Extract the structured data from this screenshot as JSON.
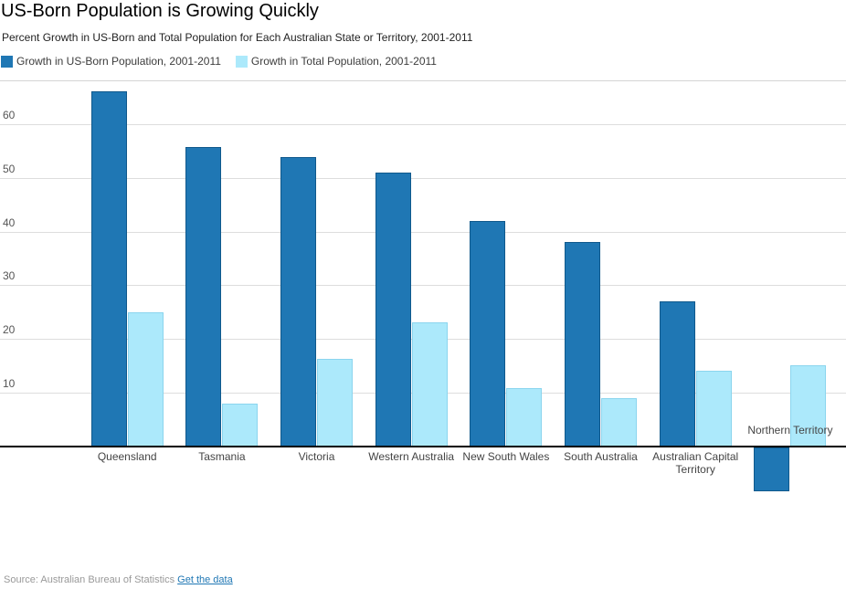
{
  "header": {
    "title": "US-Born Population is Growing Quickly",
    "subtitle": "Percent Growth in US-Born and Total Population for Each Australian State or Territory, 2001-2011"
  },
  "legend": {
    "items": [
      {
        "label": "Growth in US-Born Population, 2001-2011",
        "color": "#1f77b4"
      },
      {
        "label": "Growth in Total Population, 2001-2011",
        "color": "#ace9fb"
      }
    ]
  },
  "chart_data": {
    "type": "bar",
    "title": "US-Born Population is Growing Quickly",
    "subtitle": "Percent Growth in US-Born and Total Population for Each Australian State or Territory, 2001-2011",
    "categories": [
      "Queensland",
      "Tasmania",
      "Victoria",
      "Western Australia",
      "New South Wales",
      "South Australia",
      "Australian Capital Territory",
      "Northern Territory"
    ],
    "series": [
      {
        "name": "Growth in US-Born Population, 2001-2011",
        "color": "#1f77b4",
        "border_color": "#10598c",
        "values": [
          66.1,
          55.8,
          53.9,
          51.0,
          42.0,
          38.0,
          27.0,
          -8.2
        ]
      },
      {
        "name": "Growth in Total Population, 2001-2011",
        "color": "#ace9fb",
        "border_color": "#8bd5ee",
        "values": [
          24.9,
          8.0,
          16.2,
          23.0,
          10.8,
          8.9,
          14.1,
          15.1
        ]
      }
    ],
    "xlabel": "",
    "ylabel": "",
    "yticks": [
      10,
      20,
      30,
      40,
      50,
      60
    ],
    "ylim": [
      -10,
      68
    ],
    "grid": true,
    "legend_position": "top",
    "gridline_color": "#dddddd",
    "axis_color": "#000000"
  },
  "footer": {
    "source_text": "Source: Australian Bureau of Statistics ",
    "link_label": "Get the data",
    "link_color": "#1f77b4"
  }
}
